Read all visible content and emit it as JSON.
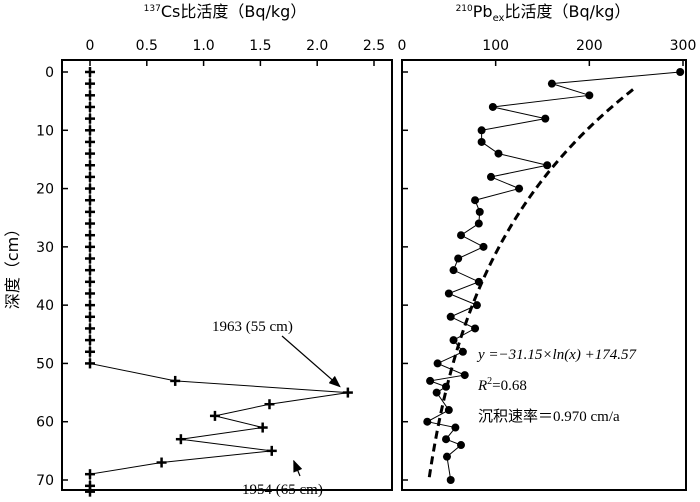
{
  "ylabel": "深度（cm）",
  "y_ticks": [
    "0",
    "10",
    "20",
    "30",
    "40",
    "50",
    "60",
    "70"
  ],
  "chart_data": [
    {
      "type": "line",
      "title_sup": "137",
      "title": "Cs比活度（Bq/kg）",
      "x_ticks": [
        "0",
        "0.5",
        "1.0",
        "1.5",
        "2.0",
        "2.5"
      ],
      "xlim": [
        0,
        2.5
      ],
      "ylim": [
        0,
        71.5
      ],
      "series": [
        {
          "x": [
            0,
            0,
            0,
            0,
            0,
            0,
            0,
            0,
            0,
            0,
            0,
            0,
            0,
            0,
            0,
            0,
            0,
            0,
            0,
            0,
            0,
            0,
            0,
            0,
            0,
            0,
            0.75,
            2.27,
            1.58,
            1.1,
            1.52,
            0.8,
            1.6,
            0.63,
            0,
            0,
            0
          ],
          "y": [
            0,
            2,
            4,
            6,
            8,
            10,
            12,
            14,
            16,
            18,
            20,
            22,
            24,
            26,
            28,
            30,
            32,
            34,
            36,
            38,
            40,
            42,
            44,
            46,
            48,
            50,
            53,
            55,
            57,
            59,
            61,
            63,
            65,
            67,
            69,
            71,
            72
          ]
        }
      ],
      "annotations": [
        {
          "text": "1963 (55 cm)",
          "x": 2.27,
          "y": 55
        },
        {
          "text": "1954 (65 cm)",
          "x": 1.6,
          "y": 65
        }
      ]
    },
    {
      "type": "line",
      "title_sup": "210",
      "title_main": "Pb",
      "title_sub": "ex",
      "title_rest": "比活度（Bq/kg）",
      "x_ticks": [
        "0",
        "100",
        "200",
        "300"
      ],
      "xlim": [
        0,
        300
      ],
      "ylim": [
        0,
        71.5
      ],
      "series": [
        {
          "x": [
            297,
            160,
            200,
            97,
            153,
            85,
            85,
            103,
            155,
            95,
            125,
            78,
            83,
            82,
            63,
            87,
            60,
            55,
            82,
            50,
            80,
            52,
            78,
            55,
            65,
            38,
            67,
            30,
            47,
            37,
            50,
            27,
            57,
            47,
            63,
            48,
            52
          ],
          "y": [
            0,
            2,
            4,
            6,
            8,
            10,
            12,
            14,
            16,
            18,
            20,
            22,
            24,
            26,
            28,
            30,
            32,
            34,
            36,
            38,
            40,
            42,
            44,
            46,
            48,
            50,
            52,
            53,
            54,
            55,
            58,
            60,
            61,
            63,
            64,
            66,
            70
          ]
        }
      ],
      "fit": {
        "equation": "y =−31.15×ln(x) +174.57",
        "r2": "R2=0.68",
        "rate": "沉积速率＝0.970  cm/a"
      }
    }
  ]
}
